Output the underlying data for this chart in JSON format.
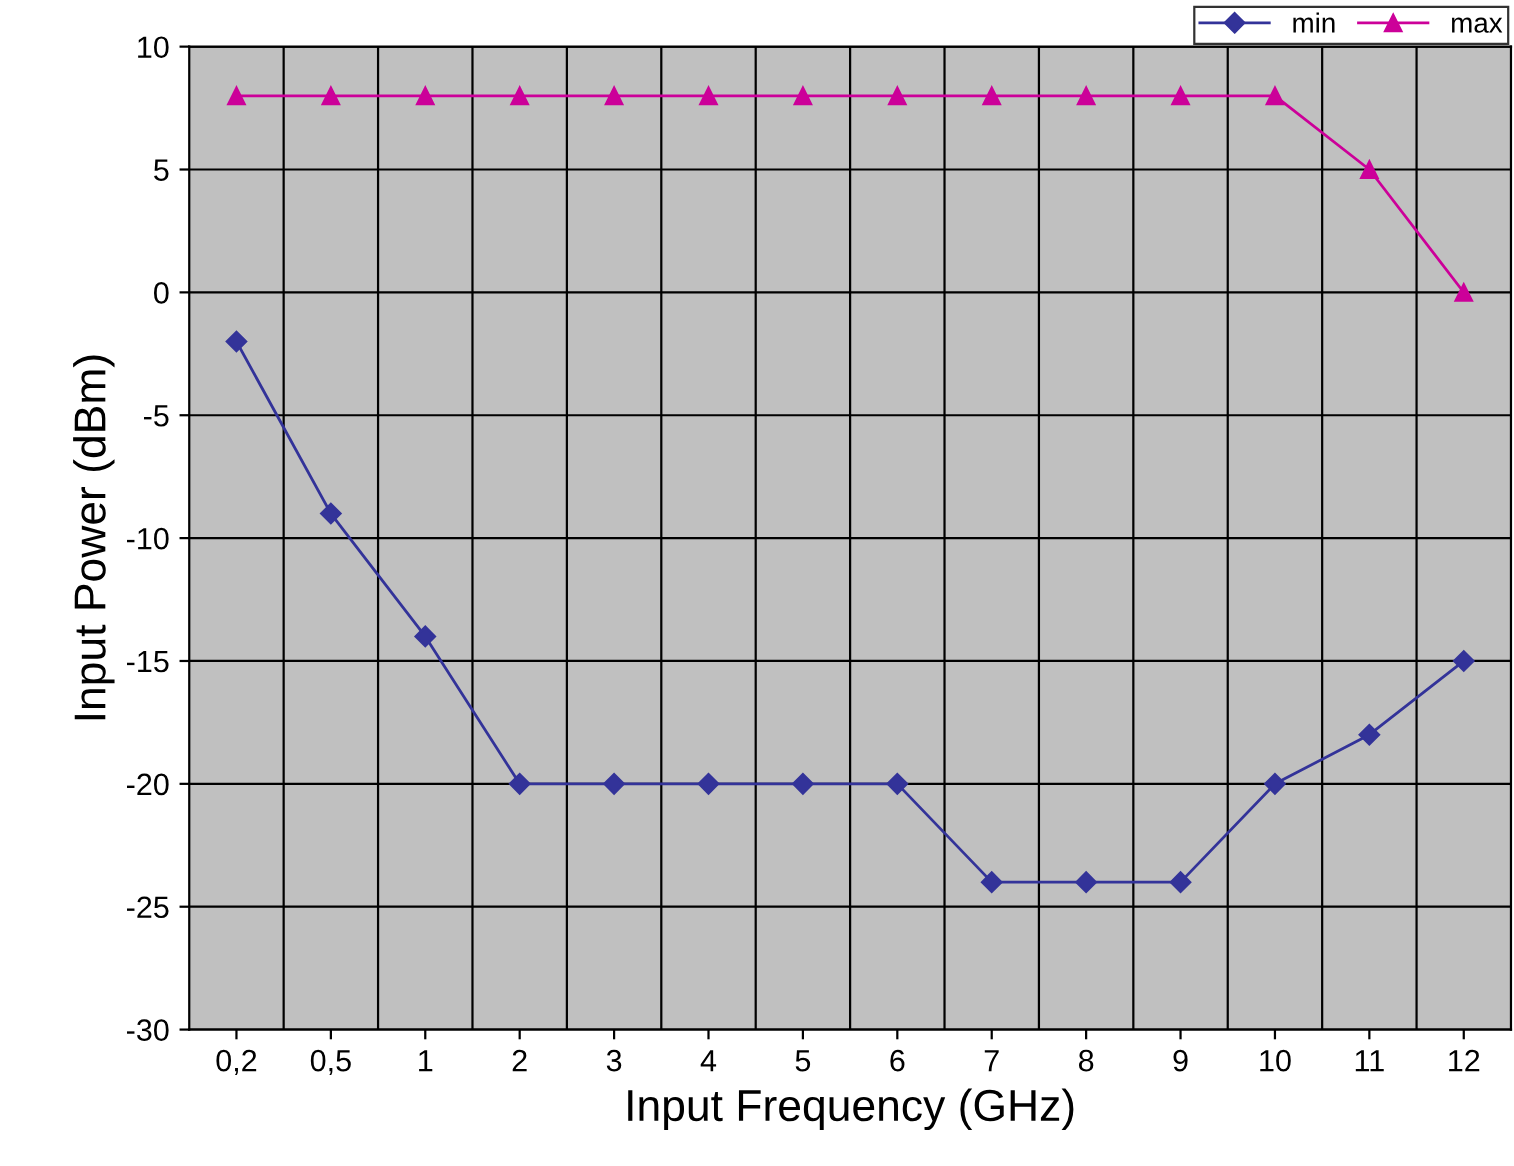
{
  "chart_data": {
    "type": "line",
    "xlabel": "Input Frequency (GHz)",
    "ylabel": "Input Power (dBm)",
    "categories": [
      "0,2",
      "0,5",
      "1",
      "2",
      "3",
      "4",
      "5",
      "6",
      "7",
      "8",
      "9",
      "10",
      "11",
      "12"
    ],
    "series": [
      {
        "name": "min",
        "color": "#333399",
        "marker": "diamond",
        "values": [
          -2,
          -9,
          -14,
          -20,
          -20,
          -20,
          -20,
          -20,
          -24,
          -24,
          -24,
          -20,
          -18,
          -15
        ]
      },
      {
        "name": "max",
        "color": "#cc0099",
        "marker": "triangle",
        "values": [
          8,
          8,
          8,
          8,
          8,
          8,
          8,
          8,
          8,
          8,
          8,
          8,
          5,
          0
        ]
      }
    ],
    "ylim": [
      -30,
      10
    ],
    "yticks": [
      -30,
      -25,
      -20,
      -15,
      -10,
      -5,
      0,
      5,
      10
    ],
    "grid": true,
    "legend": "top right",
    "line_style": "solid"
  }
}
